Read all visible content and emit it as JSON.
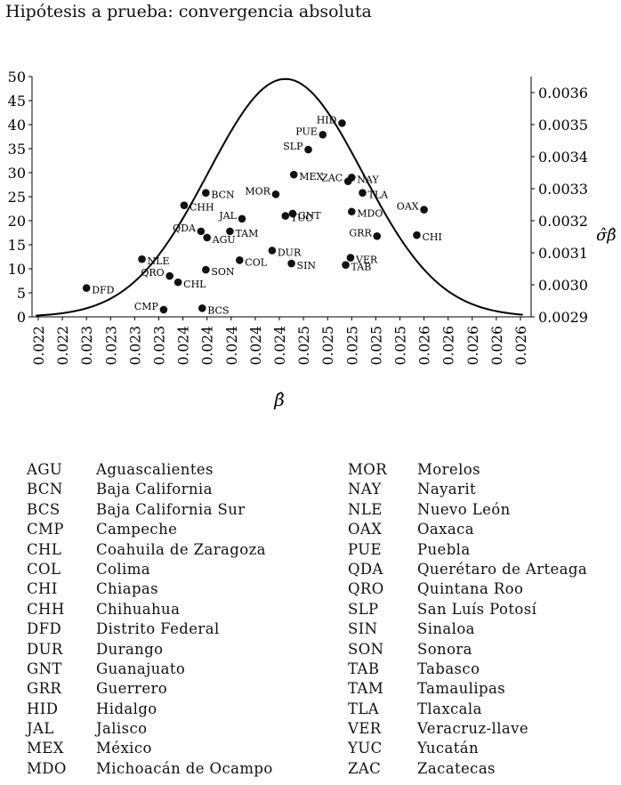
{
  "chart_data": {
    "type": "scatter",
    "title": "Hipótesis a prueba: convergencia absoluta",
    "xlabel": "β̂",
    "ylabel_right": "σ̂β̂",
    "x_tick_labels": [
      "0.022",
      "0.022",
      "0.023",
      "0.023",
      "0.023",
      "0.023",
      "0.024",
      "0.024",
      "0.024",
      "0.024",
      "0.024",
      "0.025",
      "0.025",
      "0.025",
      "0.025",
      "0.025",
      "0.026",
      "0.026",
      "0.026",
      "0.026",
      "0.026"
    ],
    "y_left_ticks": [
      0,
      5,
      10,
      15,
      20,
      25,
      30,
      35,
      40,
      45,
      50
    ],
    "y_left_range": [
      0,
      50
    ],
    "y_right_ticks": [
      "0.0029",
      "0.0030",
      "0.0031",
      "0.0032",
      "0.0033",
      "0.0034",
      "0.0035",
      "0.0036"
    ],
    "y_right_range": [
      0.0029,
      0.00365
    ],
    "curve": {
      "type": "normal-density",
      "mean_index": 10.25,
      "sd_index": 3.2,
      "peak": 49.5,
      "x_index_range": [
        -0.1,
        20.1
      ]
    },
    "points": [
      {
        "label": "DFD",
        "xi": 2.0,
        "y": 6
      },
      {
        "label": "NLE",
        "xi": 4.3,
        "y": 12
      },
      {
        "label": "QRO",
        "xi": 5.45,
        "y": 8.5
      },
      {
        "label": "CHL",
        "xi": 5.8,
        "y": 7.2
      },
      {
        "label": "CMP",
        "xi": 5.2,
        "y": 1.5
      },
      {
        "label": "BCS",
        "xi": 6.8,
        "y": 1.8
      },
      {
        "label": "QDA",
        "xi": 6.75,
        "y": 17.8
      },
      {
        "label": "AGU",
        "xi": 7.0,
        "y": 16.5
      },
      {
        "label": "CHH",
        "xi": 6.05,
        "y": 23.2
      },
      {
        "label": "BCN",
        "xi": 6.95,
        "y": 25.8
      },
      {
        "label": "SON",
        "xi": 6.95,
        "y": 9.8
      },
      {
        "label": "JAL",
        "xi": 8.45,
        "y": 20.4
      },
      {
        "label": "TAM",
        "xi": 7.95,
        "y": 17.8
      },
      {
        "label": "COL",
        "xi": 8.35,
        "y": 11.8
      },
      {
        "label": "DUR",
        "xi": 9.7,
        "y": 13.8
      },
      {
        "label": "MOR",
        "xi": 9.85,
        "y": 25.5
      },
      {
        "label": "MEX",
        "xi": 10.6,
        "y": 29.6
      },
      {
        "label": "GNT",
        "xi": 10.55,
        "y": 21.5
      },
      {
        "label": "YUC",
        "xi": 10.25,
        "y": 21.0
      },
      {
        "label": "SIN",
        "xi": 10.5,
        "y": 11.1
      },
      {
        "label": "SLP",
        "xi": 11.2,
        "y": 34.8
      },
      {
        "label": "PUE",
        "xi": 11.8,
        "y": 37.9
      },
      {
        "label": "HID",
        "xi": 12.6,
        "y": 40.3
      },
      {
        "label": "NAY",
        "xi": 13.0,
        "y": 29.0
      },
      {
        "label": "ZAC",
        "xi": 12.85,
        "y": 28.2
      },
      {
        "label": "TLA",
        "xi": 13.45,
        "y": 25.8
      },
      {
        "label": "MDO",
        "xi": 13.0,
        "y": 21.9
      },
      {
        "label": "VER",
        "xi": 12.95,
        "y": 12.3
      },
      {
        "label": "TAB",
        "xi": 12.75,
        "y": 10.8
      },
      {
        "label": "GRR",
        "xi": 14.05,
        "y": 16.8
      },
      {
        "label": "OAX",
        "xi": 16.0,
        "y": 22.3
      },
      {
        "label": "CHI",
        "xi": 15.7,
        "y": 17.0
      }
    ]
  },
  "legend": {
    "col1": [
      {
        "abbr": "AGU",
        "name": "Aguascalientes"
      },
      {
        "abbr": "BCN",
        "name": "Baja California"
      },
      {
        "abbr": "BCS",
        "name": "Baja California Sur"
      },
      {
        "abbr": "CMP",
        "name": "Campeche"
      },
      {
        "abbr": "CHL",
        "name": "Coahuila de Zaragoza"
      },
      {
        "abbr": "COL",
        "name": "Colima"
      },
      {
        "abbr": "CHI",
        "name": "Chiapas"
      },
      {
        "abbr": "CHH",
        "name": "Chihuahua"
      },
      {
        "abbr": "DFD",
        "name": "Distrito Federal"
      },
      {
        "abbr": "DUR",
        "name": "Durango"
      },
      {
        "abbr": "GNT",
        "name": "Guanajuato"
      },
      {
        "abbr": "GRR",
        "name": "Guerrero"
      },
      {
        "abbr": "HID",
        "name": "Hidalgo"
      },
      {
        "abbr": "JAL",
        "name": "Jalisco"
      },
      {
        "abbr": "MEX",
        "name": "México"
      },
      {
        "abbr": "MDO",
        "name": "Michoacán de Ocampo"
      }
    ],
    "col2": [
      {
        "abbr": "MOR",
        "name": "Morelos"
      },
      {
        "abbr": "NAY",
        "name": "Nayarit"
      },
      {
        "abbr": "NLE",
        "name": "Nuevo León"
      },
      {
        "abbr": "OAX",
        "name": "Oaxaca"
      },
      {
        "abbr": "PUE",
        "name": "Puebla"
      },
      {
        "abbr": "QDA",
        "name": "Querétaro de Arteaga"
      },
      {
        "abbr": "QRO",
        "name": "Quintana Roo"
      },
      {
        "abbr": "SLP",
        "name": "San Luís Potosí"
      },
      {
        "abbr": "SIN",
        "name": "Sinaloa"
      },
      {
        "abbr": "SON",
        "name": "Sonora"
      },
      {
        "abbr": "TAB",
        "name": "Tabasco"
      },
      {
        "abbr": "TAM",
        "name": "Tamaulipas"
      },
      {
        "abbr": "TLA",
        "name": "Tlaxcala"
      },
      {
        "abbr": "VER",
        "name": "Veracruz-llave"
      },
      {
        "abbr": "YUC",
        "name": "Yucatán"
      },
      {
        "abbr": "ZAC",
        "name": "Zacatecas"
      }
    ]
  }
}
